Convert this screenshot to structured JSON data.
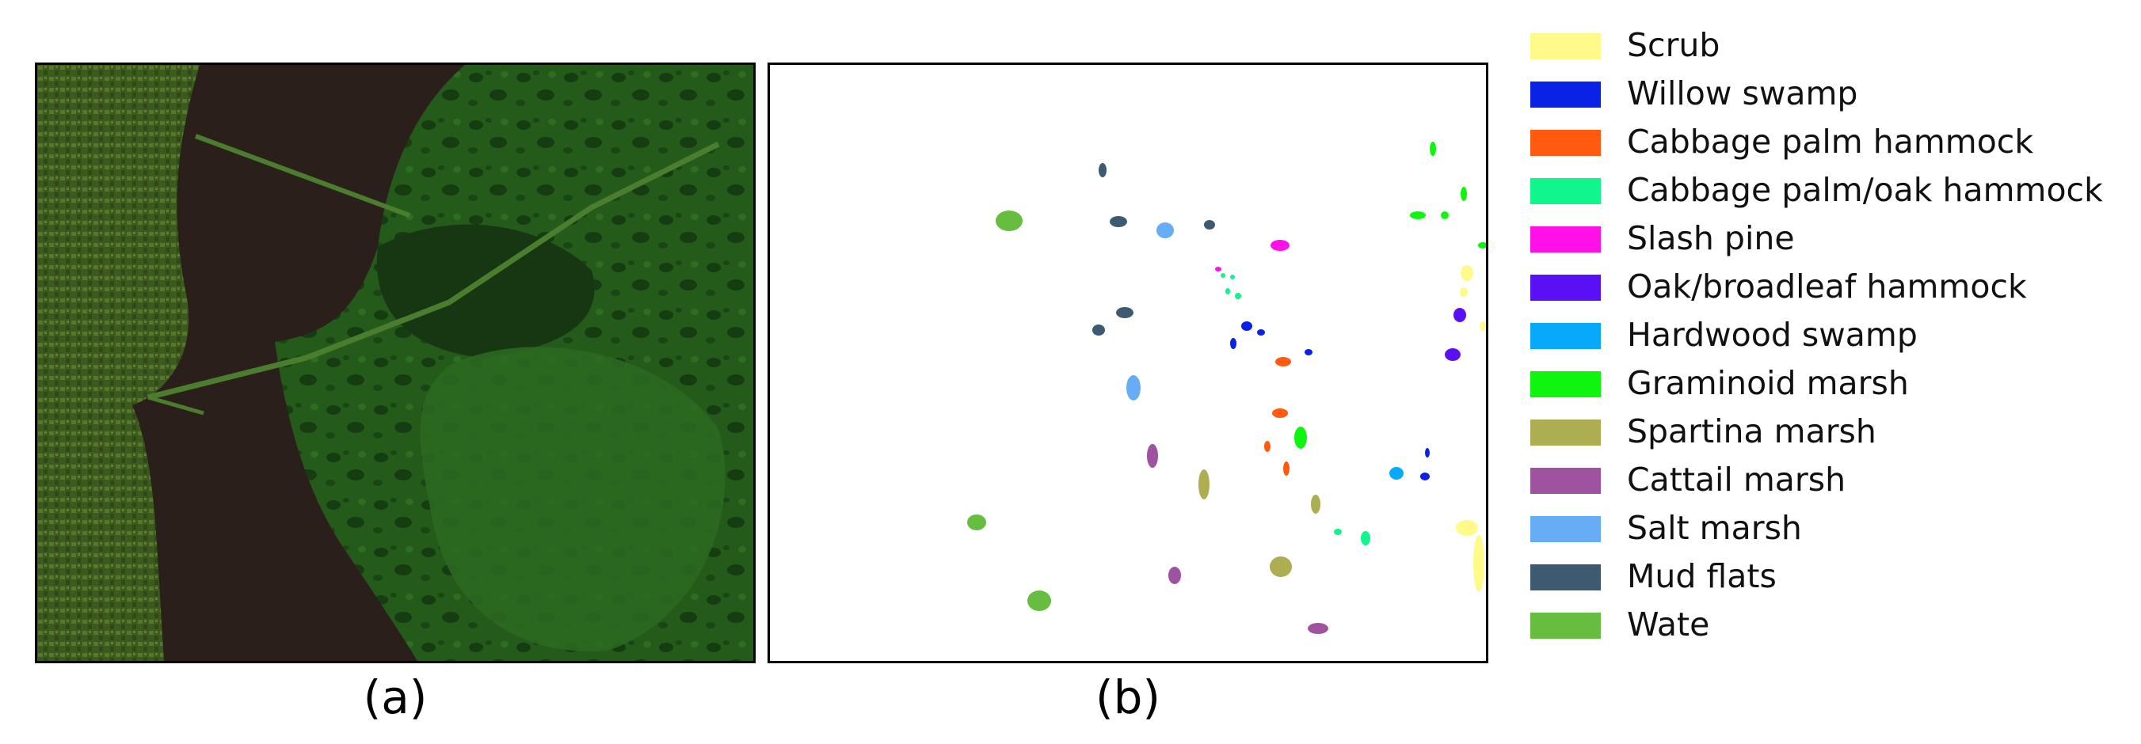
{
  "panels": [
    {
      "id": "a",
      "caption": "(a)",
      "content": "satellite-image"
    },
    {
      "id": "b",
      "caption": "(b)",
      "content": "ground-truth-map"
    }
  ],
  "legend": [
    {
      "label": "Scrub",
      "color": "#fffa8a"
    },
    {
      "label": "Willow swamp",
      "color": "#0a22e6"
    },
    {
      "label": "Cabbage palm hammock",
      "color": "#ff5a10"
    },
    {
      "label": "Cabbage palm/oak hammock",
      "color": "#10f58c"
    },
    {
      "label": "Slash pine",
      "color": "#ff10e8"
    },
    {
      "label": "Oak/broadleaf hammock",
      "color": "#5a10f5"
    },
    {
      "label": "Hardwood swamp",
      "color": "#08a8fa"
    },
    {
      "label": "Graminoid marsh",
      "color": "#10f510"
    },
    {
      "label": "Spartina marsh",
      "color": "#adad52"
    },
    {
      "label": "Cattail marsh",
      "color": "#9e52a0"
    },
    {
      "label": "Salt marsh",
      "color": "#66adf5"
    },
    {
      "label": "Mud flats",
      "color": "#3d5a70"
    },
    {
      "label": "Wate",
      "color": "#66bd40"
    }
  ]
}
